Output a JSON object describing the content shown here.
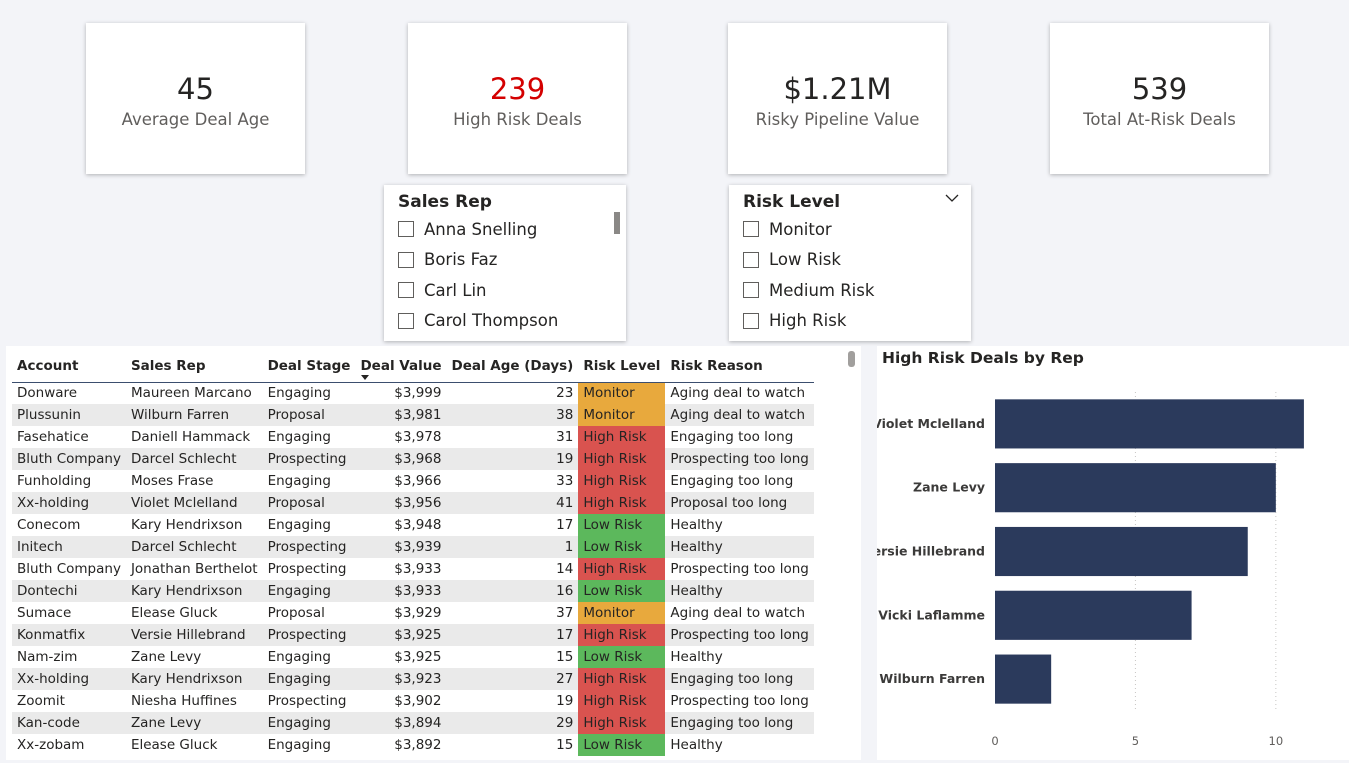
{
  "kpis": [
    {
      "value": "45",
      "label": "Average Deal Age",
      "highlight": false
    },
    {
      "value": "239",
      "label": "High Risk Deals",
      "highlight": true
    },
    {
      "value": "$1.21M",
      "label": "Risky Pipeline Value",
      "highlight": false
    },
    {
      "value": "539",
      "label": "Total At-Risk Deals",
      "highlight": false
    }
  ],
  "slicers": {
    "sales_rep": {
      "title": "Sales Rep",
      "items": [
        "Anna Snelling",
        "Boris Faz",
        "Carl Lin",
        "Carol Thompson"
      ]
    },
    "risk_level": {
      "title": "Risk Level",
      "items": [
        "Monitor",
        "Low Risk",
        "Medium Risk",
        "High Risk"
      ]
    }
  },
  "table": {
    "headers": [
      "Account",
      "Sales Rep",
      "Deal Stage",
      "Deal Value",
      "Deal Age (Days)",
      "Risk Level",
      "Risk Reason"
    ],
    "rows": [
      [
        "Donware",
        "Maureen Marcano",
        "Engaging",
        "$3,999",
        "23",
        "Monitor",
        "Aging deal to watch"
      ],
      [
        "Plussunin",
        "Wilburn Farren",
        "Proposal",
        "$3,981",
        "38",
        "Monitor",
        "Aging deal to watch"
      ],
      [
        "Fasehatice",
        "Daniell Hammack",
        "Engaging",
        "$3,978",
        "31",
        "High Risk",
        "Engaging too long"
      ],
      [
        "Bluth Company",
        "Darcel Schlecht",
        "Prospecting",
        "$3,968",
        "19",
        "High Risk",
        "Prospecting too long"
      ],
      [
        "Funholding",
        "Moses Frase",
        "Engaging",
        "$3,966",
        "33",
        "High Risk",
        "Engaging too long"
      ],
      [
        "Xx-holding",
        "Violet Mclelland",
        "Proposal",
        "$3,956",
        "41",
        "High Risk",
        "Proposal too long"
      ],
      [
        "Conecom",
        "Kary Hendrixson",
        "Engaging",
        "$3,948",
        "17",
        "Low Risk",
        "Healthy"
      ],
      [
        "Initech",
        "Darcel Schlecht",
        "Prospecting",
        "$3,939",
        "1",
        "Low Risk",
        "Healthy"
      ],
      [
        "Bluth Company",
        "Jonathan Berthelot",
        "Prospecting",
        "$3,933",
        "14",
        "High Risk",
        "Prospecting too long"
      ],
      [
        "Dontechi",
        "Kary Hendrixson",
        "Engaging",
        "$3,933",
        "16",
        "Low Risk",
        "Healthy"
      ],
      [
        "Sumace",
        "Elease Gluck",
        "Proposal",
        "$3,929",
        "37",
        "Monitor",
        "Aging deal to watch"
      ],
      [
        "Konmatfix",
        "Versie Hillebrand",
        "Prospecting",
        "$3,925",
        "17",
        "High Risk",
        "Prospecting too long"
      ],
      [
        "Nam-zim",
        "Zane Levy",
        "Engaging",
        "$3,925",
        "15",
        "Low Risk",
        "Healthy"
      ],
      [
        "Xx-holding",
        "Kary Hendrixson",
        "Engaging",
        "$3,923",
        "27",
        "High Risk",
        "Engaging too long"
      ],
      [
        "Zoomit",
        "Niesha Huffines",
        "Prospecting",
        "$3,902",
        "19",
        "High Risk",
        "Prospecting too long"
      ],
      [
        "Kan-code",
        "Zane Levy",
        "Engaging",
        "$3,894",
        "29",
        "High Risk",
        "Engaging too long"
      ],
      [
        "Xx-zobam",
        "Elease Gluck",
        "Engaging",
        "$3,892",
        "15",
        "Low Risk",
        "Healthy"
      ]
    ]
  },
  "risk_colors": {
    "Monitor": "#e8a93d",
    "High Risk": "#d9534f",
    "Low Risk": "#5cb85c"
  },
  "chart_data": {
    "type": "bar",
    "orientation": "horizontal",
    "title": "High Risk Deals by Rep",
    "categories": [
      "Violet Mclelland",
      "Zane Levy",
      "Versie Hillebrand",
      "Vicki Laflamme",
      "Wilburn Farren"
    ],
    "values": [
      11,
      10,
      9,
      7,
      2
    ],
    "xlim": [
      0,
      12
    ],
    "xticks": [
      0,
      5,
      10
    ],
    "bar_color": "#2b3a5c",
    "grid": true
  }
}
